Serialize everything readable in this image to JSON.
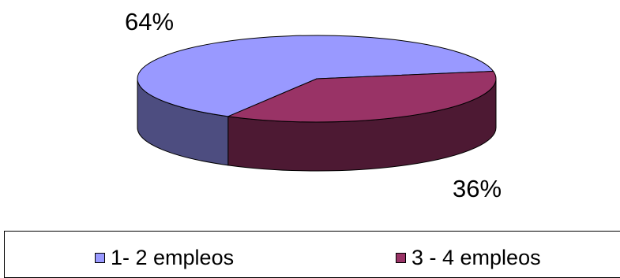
{
  "chart_data": {
    "type": "pie",
    "style": "3d",
    "slices": [
      {
        "label": "1- 2 empleos",
        "value": 64,
        "display": "64%",
        "color": "#9999ff",
        "side_color": "#4d4d80"
      },
      {
        "label": "3 - 4 empleos",
        "value": 36,
        "display": "36%",
        "color": "#993366",
        "side_color": "#4d1933"
      }
    ],
    "legend": {
      "position": "bottom",
      "boxed": true
    },
    "title": ""
  }
}
